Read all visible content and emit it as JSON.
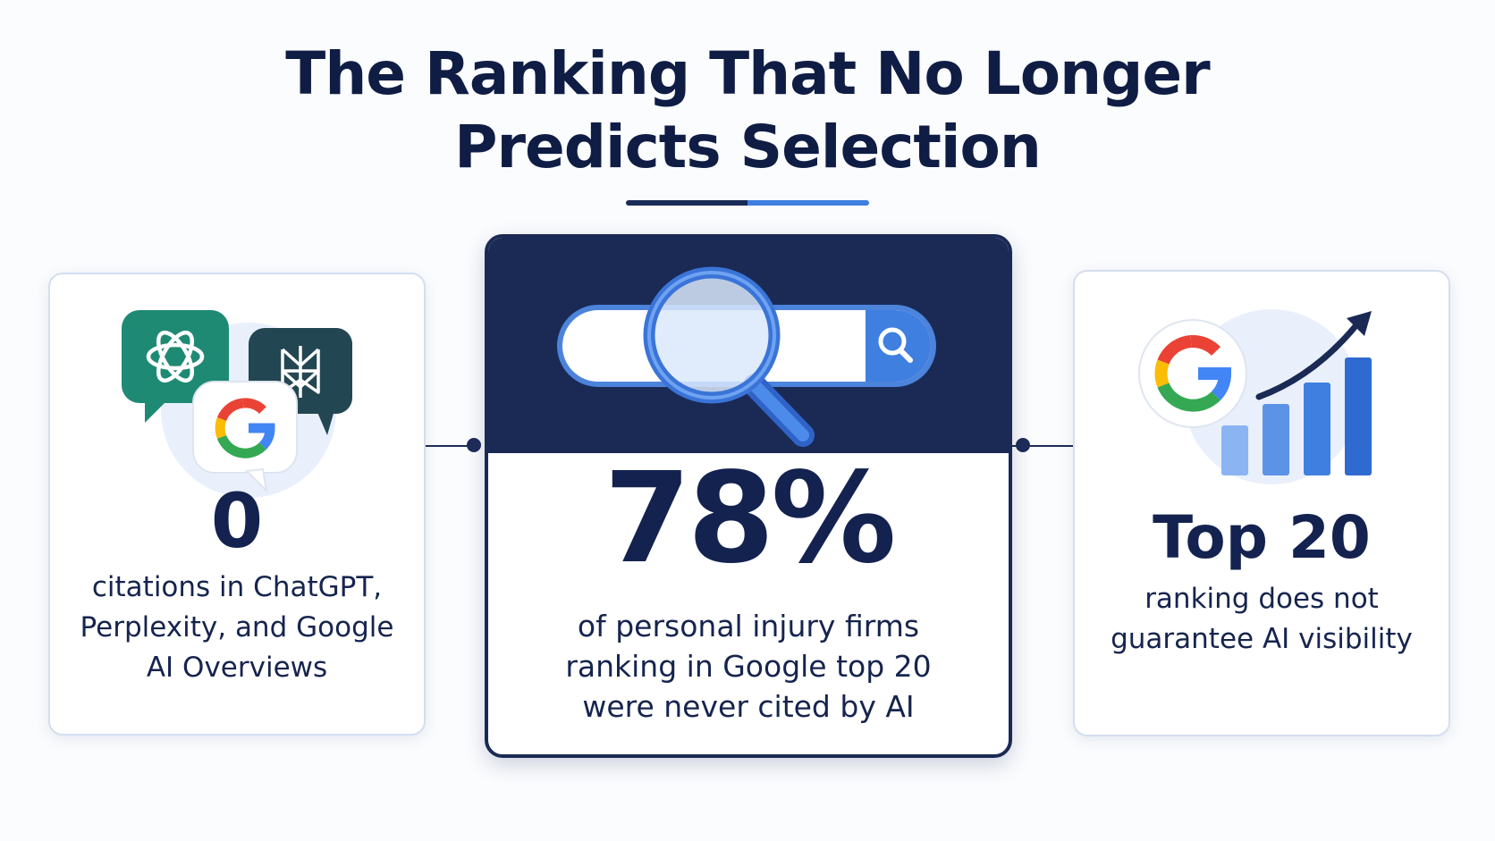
{
  "title": {
    "line1": "The Ranking That No Longer",
    "line2": "Predicts Selection"
  },
  "left_card": {
    "stat": "0",
    "desc_lines": [
      "citations in ChatGPT,",
      "Perplexity, and Google",
      "AI Overviews"
    ],
    "icons": [
      "chatgpt-icon",
      "perplexity-icon",
      "google-icon"
    ]
  },
  "center_card": {
    "stat": "78%",
    "desc_lines": [
      "of personal injury firms",
      "ranking in Google top 20",
      "were never cited by AI"
    ],
    "icons": [
      "search-bar-icon",
      "magnifying-glass-icon"
    ]
  },
  "right_card": {
    "stat": "Top 20",
    "desc_lines": [
      "ranking does not",
      "guarantee AI visibility"
    ],
    "icons": [
      "google-icon",
      "growth-chart-icon"
    ]
  },
  "colors": {
    "navy": "#1a2a55",
    "blue": "#3f7fe0",
    "chatgpt_green": "#1f8a74",
    "perplexity_teal": "#234752",
    "google_blue": "#4285F4",
    "google_red": "#EA4335",
    "google_yellow": "#FBBC05",
    "google_green": "#34A853"
  }
}
